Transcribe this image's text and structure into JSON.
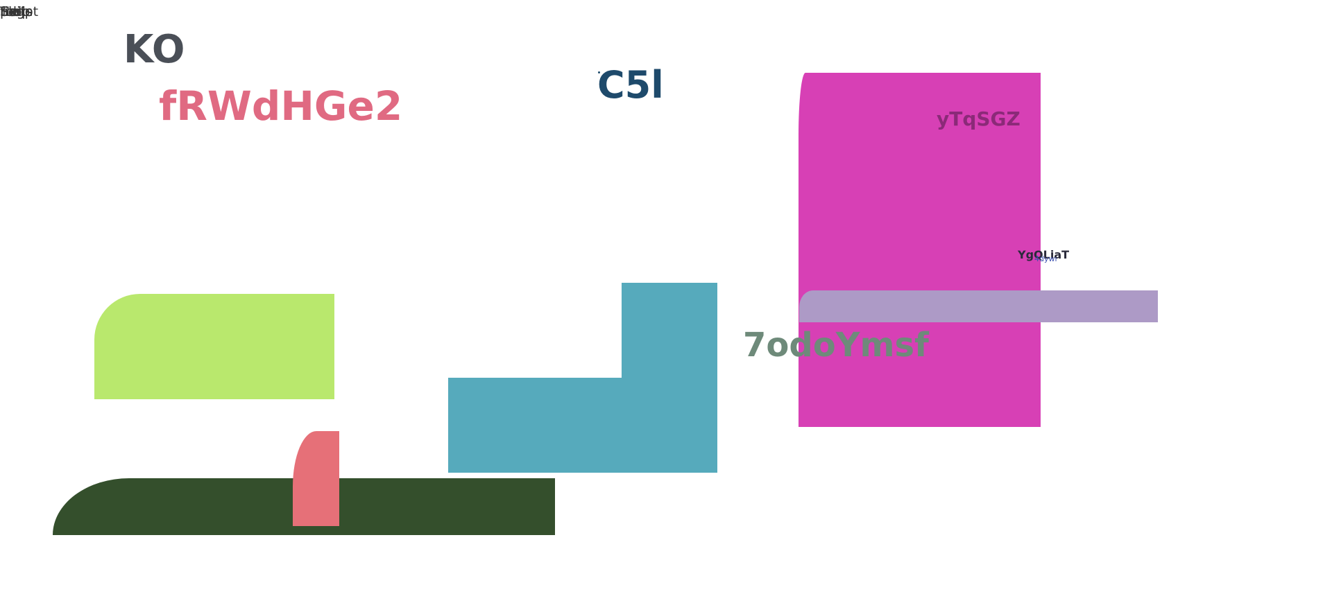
{
  "top_left_labels": [
    "Help",
    "file",
    "Tools",
    "page",
    "Edit",
    "Script"
  ],
  "texts": {
    "ko": "KO",
    "frw": "fRWdHGe2",
    "c5l": "C5l",
    "ytq": "yTqSGZ",
    "ygq": "YgQLiaT",
    "ygq_sub": "4dywı",
    "seven": "7odoYmsf"
  },
  "colors": {
    "lime": "#b9e86d",
    "dark_green": "#344f2c",
    "coral": "#e67078",
    "teal": "#56aabc",
    "magenta": "#d740b5",
    "lavender": "#ad9ac6",
    "pink_text": "#e06a82",
    "navy_text": "#1e4a6b",
    "slate_text": "#4a4f57",
    "sage_text": "#6e8a7a",
    "plum_text": "#8b2a78"
  }
}
